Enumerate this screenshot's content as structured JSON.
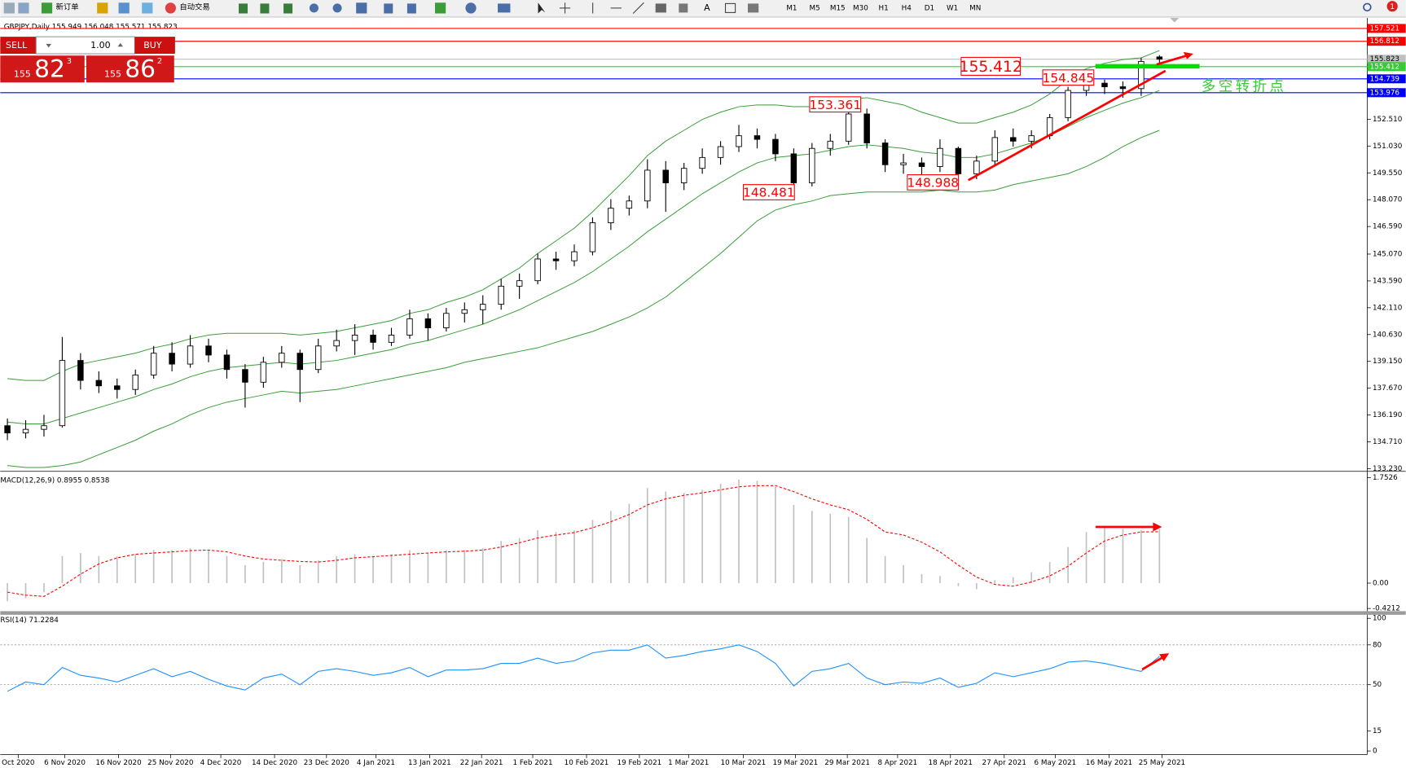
{
  "toolbar": {
    "new_order": "新订单",
    "auto_trading": "自动交易",
    "timeframes": [
      "M1",
      "M5",
      "M15",
      "M30",
      "H1",
      "H4",
      "D1",
      "W1",
      "MN"
    ],
    "badge": "1"
  },
  "trade_panel": {
    "sell": "SELL",
    "buy": "BUY",
    "lots": "1.00",
    "bid": {
      "big": "155",
      "main": "82",
      "sup": "3"
    },
    "ask": {
      "big": "155",
      "main": "86",
      "sup": "2"
    }
  },
  "chart_data": [
    {
      "type": "candlestick",
      "title": "GBPJPY,Daily  155.949 156.048 155.571 155.823",
      "ohlc": [
        [
          135.6,
          136.0,
          134.8,
          135.2
        ],
        [
          135.2,
          135.9,
          134.9,
          135.4
        ],
        [
          135.4,
          136.2,
          135.0,
          135.6
        ],
        [
          135.6,
          140.5,
          135.5,
          139.2
        ],
        [
          139.2,
          139.6,
          137.6,
          138.1
        ],
        [
          138.1,
          138.6,
          137.4,
          137.8
        ],
        [
          137.8,
          138.2,
          137.1,
          137.6
        ],
        [
          137.6,
          138.7,
          137.3,
          138.4
        ],
        [
          138.4,
          140.0,
          138.2,
          139.6
        ],
        [
          139.6,
          140.2,
          138.6,
          139.0
        ],
        [
          139.0,
          140.6,
          138.8,
          140.0
        ],
        [
          140.0,
          140.4,
          139.1,
          139.5
        ],
        [
          139.5,
          139.8,
          138.2,
          138.7
        ],
        [
          138.7,
          139.0,
          136.6,
          138.0
        ],
        [
          138.0,
          139.4,
          137.7,
          139.1
        ],
        [
          139.1,
          140.0,
          138.8,
          139.6
        ],
        [
          139.6,
          139.8,
          136.9,
          138.7
        ],
        [
          138.7,
          140.4,
          138.5,
          140.0
        ],
        [
          140.0,
          140.9,
          139.7,
          140.3
        ],
        [
          140.3,
          141.2,
          139.5,
          140.6
        ],
        [
          140.6,
          140.9,
          139.8,
          140.2
        ],
        [
          140.2,
          141.0,
          140.0,
          140.6
        ],
        [
          140.6,
          142.0,
          140.4,
          141.5
        ],
        [
          141.5,
          141.8,
          140.3,
          141.0
        ],
        [
          141.0,
          142.1,
          140.8,
          141.8
        ],
        [
          141.8,
          142.4,
          141.3,
          142.0
        ],
        [
          142.0,
          142.8,
          141.2,
          142.3
        ],
        [
          142.3,
          143.7,
          142.0,
          143.3
        ],
        [
          143.3,
          144.0,
          142.6,
          143.6
        ],
        [
          143.6,
          145.1,
          143.4,
          144.8
        ],
        [
          144.8,
          145.2,
          144.2,
          144.7
        ],
        [
          144.7,
          145.6,
          144.4,
          145.2
        ],
        [
          145.2,
          147.1,
          145.0,
          146.8
        ],
        [
          146.8,
          148.1,
          146.4,
          147.6
        ],
        [
          147.6,
          148.3,
          147.2,
          148.0
        ],
        [
          148.0,
          150.3,
          147.6,
          149.7
        ],
        [
          149.7,
          150.2,
          147.4,
          149.0
        ],
        [
          149.0,
          150.1,
          148.6,
          149.8
        ],
        [
          149.8,
          150.9,
          149.5,
          150.4
        ],
        [
          150.4,
          151.3,
          150.0,
          151.0
        ],
        [
          151.0,
          152.2,
          150.7,
          151.6
        ],
        [
          151.6,
          152.0,
          150.9,
          151.4
        ],
        [
          151.4,
          151.7,
          150.2,
          150.6
        ],
        [
          150.6,
          150.9,
          148.481,
          149.0
        ],
        [
          149.0,
          151.2,
          148.8,
          150.9
        ],
        [
          150.9,
          151.7,
          150.5,
          151.3
        ],
        [
          151.3,
          153.361,
          151.1,
          152.8
        ],
        [
          152.8,
          153.1,
          150.9,
          151.2
        ],
        [
          151.2,
          151.4,
          149.6,
          150.0
        ],
        [
          150.0,
          150.6,
          149.5,
          150.1
        ],
        [
          150.1,
          150.4,
          149.4,
          149.9
        ],
        [
          149.9,
          151.4,
          149.6,
          150.9
        ],
        [
          150.9,
          151.0,
          148.988,
          149.5
        ],
        [
          149.5,
          150.5,
          149.2,
          150.2
        ],
        [
          150.2,
          151.9,
          150.0,
          151.5
        ],
        [
          151.5,
          152.0,
          151.0,
          151.3
        ],
        [
          151.3,
          151.9,
          150.9,
          151.6
        ],
        [
          151.6,
          152.8,
          151.4,
          152.6
        ],
        [
          152.6,
          154.3,
          152.4,
          154.1
        ],
        [
          154.1,
          154.845,
          153.8,
          154.5
        ],
        [
          154.5,
          154.7,
          153.9,
          154.3
        ],
        [
          154.3,
          154.6,
          153.7,
          154.2
        ],
        [
          154.2,
          155.9,
          153.8,
          155.7
        ],
        [
          155.949,
          156.048,
          155.571,
          155.823
        ]
      ],
      "bands": {
        "color": "#3a9d3a",
        "upper": [
          138.2,
          138.1,
          138.1,
          138.6,
          139.0,
          139.2,
          139.4,
          139.6,
          139.9,
          140.1,
          140.4,
          140.6,
          140.7,
          140.7,
          140.7,
          140.7,
          140.6,
          140.7,
          140.8,
          141.0,
          141.2,
          141.4,
          141.8,
          142.0,
          142.4,
          142.7,
          143.1,
          143.7,
          144.3,
          145.1,
          145.8,
          146.5,
          147.4,
          148.4,
          149.4,
          150.5,
          151.3,
          151.9,
          152.5,
          152.9,
          153.2,
          153.3,
          153.3,
          153.2,
          153.2,
          153.3,
          153.6,
          153.7,
          153.5,
          153.3,
          152.9,
          152.6,
          152.3,
          152.3,
          152.6,
          152.9,
          153.3,
          153.9,
          154.7,
          155.3,
          155.6,
          155.8,
          155.9,
          156.3
        ],
        "middle": [
          135.8,
          135.7,
          135.7,
          136.0,
          136.3,
          136.6,
          136.9,
          137.2,
          137.6,
          137.9,
          138.3,
          138.6,
          138.8,
          138.9,
          139.0,
          139.1,
          139.0,
          139.1,
          139.2,
          139.4,
          139.6,
          139.8,
          140.1,
          140.3,
          140.6,
          140.9,
          141.2,
          141.6,
          142.0,
          142.5,
          143.0,
          143.5,
          144.1,
          144.8,
          145.5,
          146.3,
          147.0,
          147.7,
          148.4,
          149.0,
          149.6,
          150.1,
          150.4,
          150.5,
          150.6,
          150.8,
          151.0,
          151.1,
          151.0,
          150.9,
          150.7,
          150.6,
          150.4,
          150.4,
          150.6,
          150.9,
          151.2,
          151.6,
          152.1,
          152.6,
          153.0,
          153.4,
          153.7,
          154.1
        ],
        "lower": [
          133.4,
          133.3,
          133.3,
          133.4,
          133.6,
          134.0,
          134.4,
          134.8,
          135.3,
          135.7,
          136.2,
          136.6,
          136.9,
          137.1,
          137.3,
          137.5,
          137.4,
          137.5,
          137.6,
          137.8,
          138.0,
          138.2,
          138.4,
          138.6,
          138.8,
          139.1,
          139.3,
          139.5,
          139.7,
          139.9,
          140.2,
          140.5,
          140.8,
          141.2,
          141.6,
          142.1,
          142.7,
          143.5,
          144.3,
          145.1,
          146.0,
          146.9,
          147.5,
          147.8,
          148.0,
          148.3,
          148.4,
          148.5,
          148.5,
          148.5,
          148.5,
          148.6,
          148.5,
          148.5,
          148.6,
          148.9,
          149.1,
          149.3,
          149.5,
          149.9,
          150.4,
          151.0,
          151.5,
          151.9
        ]
      },
      "ylim": [
        133.13,
        158.1
      ],
      "yticks": [
        {
          "value": 133.23,
          "label": "133.230"
        },
        {
          "value": 134.71,
          "label": "134.710"
        },
        {
          "value": 136.19,
          "label": "136.190"
        },
        {
          "value": 137.67,
          "label": "137.670"
        },
        {
          "value": 139.15,
          "label": "139.150"
        },
        {
          "value": 140.63,
          "label": "140.630"
        },
        {
          "value": 142.11,
          "label": "142.110"
        },
        {
          "value": 143.59,
          "label": "143.590"
        },
        {
          "value": 145.07,
          "label": "145.070"
        },
        {
          "value": 146.59,
          "label": "146.590"
        },
        {
          "value": 148.07,
          "label": "148.070"
        },
        {
          "value": 149.55,
          "label": "149.550"
        },
        {
          "value": 151.03,
          "label": "151.030"
        },
        {
          "value": 152.51,
          "label": "152.510"
        }
      ],
      "xlim": [
        -0.39,
        74.36
      ],
      "xticks": [
        {
          "value": 0.59,
          "label": "Oct 2020"
        },
        {
          "value": 3.14,
          "label": "6 Nov 2020"
        },
        {
          "value": 6.08,
          "label": "16 Nov 2020"
        },
        {
          "value": 8.92,
          "label": "25 Nov 2020"
        },
        {
          "value": 11.67,
          "label": "4 Dec 2020"
        },
        {
          "value": 14.61,
          "label": "14 Dec 2020"
        },
        {
          "value": 17.45,
          "label": "23 Dec 2020"
        },
        {
          "value": 20.15,
          "label": "4 Jan 2021"
        },
        {
          "value": 23.09,
          "label": "13 Jan 2021"
        },
        {
          "value": 25.93,
          "label": "22 Jan 2021"
        },
        {
          "value": 28.73,
          "label": "1 Feb 2021"
        },
        {
          "value": 31.67,
          "label": "10 Feb 2021"
        },
        {
          "value": 34.56,
          "label": "19 Feb 2021"
        },
        {
          "value": 37.25,
          "label": "1 Mar 2021"
        },
        {
          "value": 40.24,
          "label": "10 Mar 2021"
        },
        {
          "value": 43.09,
          "label": "19 Mar 2021"
        },
        {
          "value": 45.93,
          "label": "29 Mar 2021"
        },
        {
          "value": 48.68,
          "label": "8 Apr 2021"
        },
        {
          "value": 51.57,
          "label": "18 Apr 2021"
        },
        {
          "value": 54.51,
          "label": "27 Apr 2021"
        },
        {
          "value": 57.3,
          "label": "6 May 2021"
        },
        {
          "value": 60.25,
          "label": "16 May 2021"
        },
        {
          "value": 63.14,
          "label": "25 May 2021"
        }
      ],
      "levels": [
        {
          "value": 157.521,
          "color": "#ff0000",
          "text_color": "#ffffff"
        },
        {
          "value": 156.812,
          "color": "#ff0000",
          "text_color": "#ffffff"
        },
        {
          "value": 155.823,
          "color": "#c0c0c0",
          "text_color": "#000000"
        },
        {
          "value": 155.412,
          "color": "#33cc33",
          "text_color": "#ffffff"
        },
        {
          "value": 154.739,
          "color": "#0000ff",
          "text_color": "#ffffff"
        },
        {
          "value": 153.976,
          "color": "#0000ff",
          "text_color": "#ffffff"
        }
      ],
      "annotations": [
        "155.412",
        "154.845",
        "153.361",
        "148.481",
        "148.988"
      ],
      "annotation_color": "#ff0000",
      "note": "多空转折点",
      "note_color": "#33cc33"
    },
    {
      "type": "macd",
      "title": "MACD(12,26,9) 0.8955 0.8538",
      "series": [
        {
          "style": "bar",
          "color": "#c0c0c0",
          "values": [
            -0.3,
            -0.25,
            -0.15,
            0.45,
            0.5,
            0.45,
            0.45,
            0.48,
            0.55,
            0.55,
            0.58,
            0.55,
            0.45,
            0.3,
            0.35,
            0.4,
            0.3,
            0.38,
            0.45,
            0.48,
            0.45,
            0.48,
            0.55,
            0.5,
            0.55,
            0.55,
            0.58,
            0.7,
            0.75,
            0.88,
            0.85,
            0.88,
            1.05,
            1.2,
            1.32,
            1.58,
            1.52,
            1.5,
            1.55,
            1.65,
            1.72,
            1.7,
            1.6,
            1.3,
            1.2,
            1.15,
            1.1,
            0.75,
            0.45,
            0.3,
            0.15,
            0.12,
            -0.05,
            -0.1,
            0.05,
            0.1,
            0.18,
            0.35,
            0.6,
            0.85,
            0.95,
            0.9,
            0.88,
            0.8955
          ]
        },
        {
          "style": "dashed",
          "color": "#ff0000",
          "values": [
            -0.15,
            -0.2,
            -0.22,
            -0.05,
            0.15,
            0.32,
            0.42,
            0.48,
            0.5,
            0.52,
            0.54,
            0.55,
            0.52,
            0.45,
            0.4,
            0.38,
            0.36,
            0.35,
            0.38,
            0.42,
            0.44,
            0.46,
            0.48,
            0.5,
            0.52,
            0.53,
            0.55,
            0.6,
            0.67,
            0.75,
            0.8,
            0.84,
            0.92,
            1.02,
            1.14,
            1.3,
            1.4,
            1.46,
            1.5,
            1.55,
            1.6,
            1.62,
            1.62,
            1.52,
            1.4,
            1.3,
            1.22,
            1.06,
            0.85,
            0.8,
            0.68,
            0.52,
            0.3,
            0.1,
            -0.02,
            -0.05,
            0.02,
            0.12,
            0.28,
            0.5,
            0.7,
            0.8,
            0.85,
            0.8538
          ]
        }
      ],
      "ylim": [
        -0.4212,
        1.7526
      ],
      "yticks": [
        -0.4212,
        {
          "value": 0,
          "label": "0.00"
        },
        1.7526
      ]
    },
    {
      "type": "line",
      "title": "RSI(14) 71.2284",
      "color": "#1e90ff",
      "values": [
        45,
        52,
        50,
        63,
        57,
        55,
        52,
        57,
        62,
        56,
        60,
        54,
        49,
        46,
        55,
        58,
        50,
        60,
        62,
        60,
        57,
        59,
        63,
        56,
        61,
        61,
        62,
        66,
        66,
        70,
        66,
        68,
        74,
        76,
        76,
        80,
        70,
        72,
        75,
        77,
        80,
        75,
        66,
        49,
        60,
        62,
        66,
        55,
        50,
        52,
        51,
        55,
        48,
        51,
        59,
        56,
        59,
        62,
        67,
        68,
        66,
        63,
        60,
        71.2284
      ],
      "ylim": [
        0,
        100
      ],
      "yticks": [
        0,
        15,
        50,
        80,
        100
      ],
      "levels": [
        80,
        50
      ]
    }
  ]
}
